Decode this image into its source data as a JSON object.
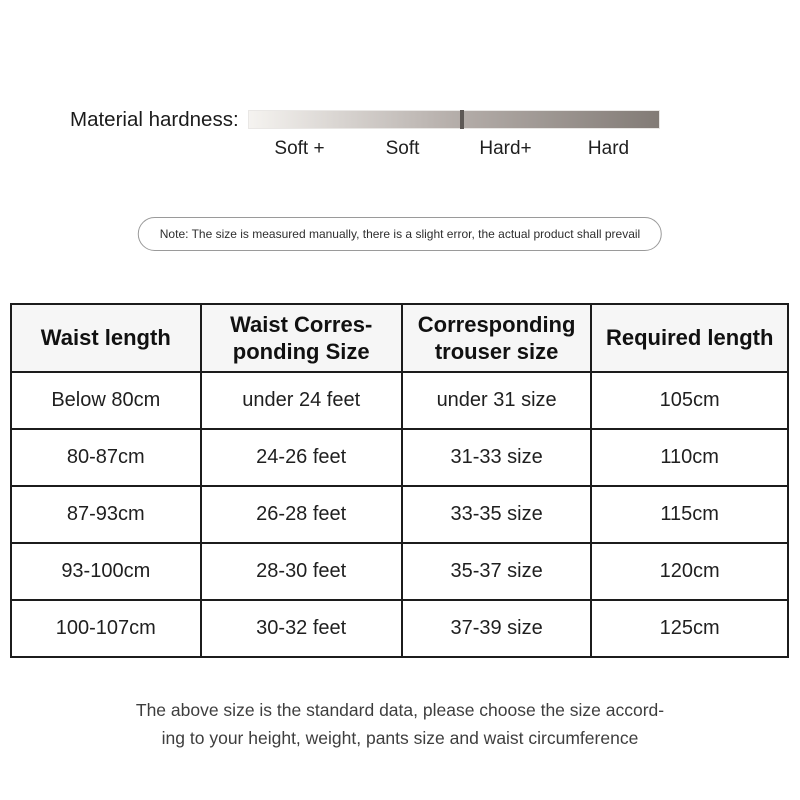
{
  "hardness": {
    "label": "Material hardness:",
    "scale_labels": [
      "Soft +",
      "Soft",
      "Hard+",
      "Hard"
    ],
    "marker_position_pct": 52
  },
  "note": {
    "text": "Note: The size is measured manually, there is a slight error, the actual product shall prevail"
  },
  "size_table": {
    "headers": [
      "Waist length",
      "Waist Corres-\nponding Size",
      "Corresponding\ntrouser size",
      "Required length"
    ],
    "rows": [
      [
        "Below 80cm",
        "under 24 feet",
        "under 31 size",
        "105cm"
      ],
      [
        "80-87cm",
        "24-26 feet",
        "31-33 size",
        "110cm"
      ],
      [
        "87-93cm",
        "26-28 feet",
        "33-35 size",
        "115cm"
      ],
      [
        "93-100cm",
        "28-30 feet",
        "35-37 size",
        "120cm"
      ],
      [
        "100-107cm",
        "30-32 feet",
        "37-39 size",
        "125cm"
      ]
    ]
  },
  "footer": {
    "text": "The above size is the standard data, please choose the size accord-\ning to your height, weight, pants size and waist circumference"
  },
  "colors": {
    "bar_gradient_start": "#f5f3f0",
    "bar_gradient_mid": "#b5aeaa",
    "bar_gradient_end": "#827b76",
    "bar_marker": "#5d5855",
    "table_border": "#1c1c1c",
    "header_bg": "#f6f6f6"
  }
}
